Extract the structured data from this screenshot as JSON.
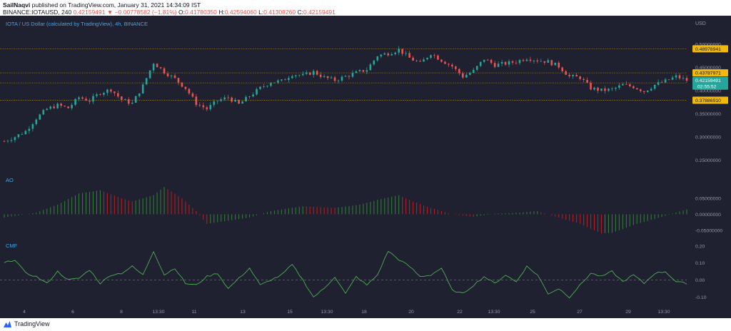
{
  "header": {
    "author": "SailNaqvi",
    "published": "published on TradingView.com, January 31, 2021 14:34:09 IST",
    "symbol_line": "BINANCE:IOTAUSD, 240",
    "arrow": "▼",
    "change": "−0.00778582 (−1.81%)",
    "ohlc": [
      {
        "k": "O:",
        "v": "0.41780350"
      },
      {
        "k": "H:",
        "v": "0.42594060"
      },
      {
        "k": "L:",
        "v": "0.41308260"
      },
      {
        "k": "C:",
        "v": "0.42159491"
      }
    ],
    "last": "0.42159491"
  },
  "chart_title": "IOTA / US Dollar (calculated by TradingView), 4h, BINANCE",
  "footer": {
    "brand": "TradingView"
  },
  "colors": {
    "background": "#1f2130",
    "up": "#26a69a",
    "down": "#ef5350",
    "ao_up": "#2e7d32",
    "ao_down": "#b71c1c",
    "cmf_line": "#4caf50",
    "level_line": "#f0b90b",
    "price_label": "#26a69a",
    "axis_text": "#9598a1"
  },
  "chart_data": [
    {
      "type": "candlestick",
      "title": "IOTA / US Dollar (calculated by TradingView), 4h, BINANCE",
      "y_axis_label": "USD",
      "y_ticks": [
        "0.50000000",
        "0.45000000",
        "0.40000000",
        "0.35000000",
        "0.30000000",
        "0.25000000"
      ],
      "ylim": [
        0.235,
        0.515
      ],
      "x_ticks": [
        "4",
        "6",
        "8",
        "13:30",
        "11",
        "13",
        "15",
        "13:30",
        "18",
        "20",
        "22",
        "13:30",
        "25",
        "27",
        "29",
        "13:30"
      ],
      "grid": false,
      "levels": [
        {
          "value": "0.48978941",
          "y": 0.48978941
        },
        {
          "value": "0.43787971",
          "y": 0.43787971
        },
        {
          "value": "0.41632980",
          "y": 0.4163298
        },
        {
          "value": "0.37886910",
          "y": 0.3788691
        }
      ],
      "last_price_label": {
        "value": "0.42159491",
        "countdown": "02:55:52"
      },
      "close_anchors": [
        [
          0,
          0.29
        ],
        [
          6,
          0.3
        ],
        [
          12,
          0.312
        ],
        [
          18,
          0.34
        ],
        [
          24,
          0.36
        ],
        [
          30,
          0.368
        ],
        [
          36,
          0.362
        ],
        [
          42,
          0.385
        ],
        [
          48,
          0.378
        ],
        [
          54,
          0.395
        ],
        [
          60,
          0.402
        ],
        [
          66,
          0.38
        ],
        [
          72,
          0.372
        ],
        [
          78,
          0.41
        ],
        [
          84,
          0.46
        ],
        [
          90,
          0.44
        ],
        [
          96,
          0.425
        ],
        [
          102,
          0.405
        ],
        [
          108,
          0.372
        ],
        [
          114,
          0.36
        ],
        [
          120,
          0.378
        ],
        [
          126,
          0.385
        ],
        [
          132,
          0.37
        ],
        [
          138,
          0.388
        ],
        [
          144,
          0.405
        ],
        [
          150,
          0.418
        ],
        [
          156,
          0.42
        ],
        [
          162,
          0.435
        ],
        [
          168,
          0.432
        ],
        [
          174,
          0.44
        ],
        [
          180,
          0.428
        ],
        [
          186,
          0.422
        ],
        [
          192,
          0.43
        ],
        [
          198,
          0.438
        ],
        [
          204,
          0.445
        ],
        [
          210,
          0.475
        ],
        [
          216,
          0.48
        ],
        [
          222,
          0.488
        ],
        [
          228,
          0.47
        ],
        [
          234,
          0.458
        ],
        [
          240,
          0.48
        ],
        [
          246,
          0.465
        ],
        [
          252,
          0.452
        ],
        [
          258,
          0.43
        ],
        [
          264,
          0.442
        ],
        [
          270,
          0.468
        ],
        [
          276,
          0.455
        ],
        [
          282,
          0.458
        ],
        [
          288,
          0.462
        ],
        [
          294,
          0.47
        ],
        [
          300,
          0.465
        ],
        [
          306,
          0.462
        ],
        [
          312,
          0.452
        ],
        [
          318,
          0.43
        ],
        [
          324,
          0.428
        ],
        [
          330,
          0.405
        ],
        [
          336,
          0.4
        ],
        [
          342,
          0.402
        ],
        [
          348,
          0.412
        ],
        [
          354,
          0.408
        ],
        [
          360,
          0.398
        ],
        [
          366,
          0.412
        ],
        [
          372,
          0.42
        ],
        [
          378,
          0.43
        ],
        [
          384,
          0.422
        ]
      ],
      "volatility": 0.0045
    },
    {
      "type": "bar",
      "title": "AO",
      "y_ticks": [
        "0.05000000",
        "0.00000000",
        "-0.05000000"
      ],
      "ylim": [
        -0.075,
        0.09
      ],
      "anchors": [
        [
          0,
          -0.01
        ],
        [
          18,
          0.005
        ],
        [
          30,
          0.03
        ],
        [
          42,
          0.065
        ],
        [
          54,
          0.075
        ],
        [
          66,
          0.05
        ],
        [
          72,
          0.04
        ],
        [
          84,
          0.06
        ],
        [
          90,
          0.085
        ],
        [
          100,
          0.05
        ],
        [
          108,
          0.01
        ],
        [
          114,
          -0.03
        ],
        [
          126,
          -0.02
        ],
        [
          138,
          -0.01
        ],
        [
          150,
          0.01
        ],
        [
          168,
          0.025
        ],
        [
          186,
          0.02
        ],
        [
          200,
          0.03
        ],
        [
          210,
          0.045
        ],
        [
          222,
          0.06
        ],
        [
          230,
          0.04
        ],
        [
          240,
          0.02
        ],
        [
          252,
          0.0
        ],
        [
          264,
          -0.008
        ],
        [
          276,
          0.002
        ],
        [
          290,
          0.005
        ],
        [
          300,
          0.01
        ],
        [
          312,
          -0.01
        ],
        [
          324,
          -0.03
        ],
        [
          336,
          -0.06
        ],
        [
          342,
          -0.058
        ],
        [
          356,
          -0.03
        ],
        [
          370,
          -0.008
        ],
        [
          384,
          0.015
        ]
      ]
    },
    {
      "type": "line",
      "title": "CMF",
      "y_ticks": [
        "0.20",
        "0.10",
        "0.00",
        "-0.10"
      ],
      "ylim": [
        -0.14,
        0.22
      ],
      "anchors": [
        [
          0,
          0.1
        ],
        [
          6,
          0.12
        ],
        [
          12,
          0.04
        ],
        [
          18,
          0.02
        ],
        [
          24,
          -0.02
        ],
        [
          30,
          0.05
        ],
        [
          36,
          0.0
        ],
        [
          42,
          0.01
        ],
        [
          48,
          0.06
        ],
        [
          54,
          -0.02
        ],
        [
          60,
          0.03
        ],
        [
          66,
          0.04
        ],
        [
          72,
          0.08
        ],
        [
          78,
          0.03
        ],
        [
          84,
          0.17
        ],
        [
          90,
          0.03
        ],
        [
          96,
          0.07
        ],
        [
          102,
          -0.02
        ],
        [
          108,
          -0.03
        ],
        [
          114,
          0.02
        ],
        [
          120,
          0.04
        ],
        [
          126,
          -0.05
        ],
        [
          132,
          0.01
        ],
        [
          138,
          0.07
        ],
        [
          144,
          -0.03
        ],
        [
          150,
          0.0
        ],
        [
          156,
          0.03
        ],
        [
          162,
          0.09
        ],
        [
          168,
          0.0
        ],
        [
          174,
          -0.1
        ],
        [
          180,
          -0.05
        ],
        [
          186,
          0.02
        ],
        [
          192,
          -0.08
        ],
        [
          198,
          0.02
        ],
        [
          204,
          -0.03
        ],
        [
          210,
          0.03
        ],
        [
          216,
          0.17
        ],
        [
          222,
          0.12
        ],
        [
          228,
          0.08
        ],
        [
          234,
          0.02
        ],
        [
          240,
          0.03
        ],
        [
          246,
          0.07
        ],
        [
          252,
          -0.06
        ],
        [
          258,
          -0.08
        ],
        [
          264,
          -0.03
        ],
        [
          270,
          0.02
        ],
        [
          276,
          -0.02
        ],
        [
          282,
          0.03
        ],
        [
          288,
          -0.01
        ],
        [
          294,
          0.08
        ],
        [
          300,
          0.03
        ],
        [
          306,
          -0.08
        ],
        [
          312,
          -0.05
        ],
        [
          318,
          -0.1
        ],
        [
          324,
          -0.03
        ],
        [
          330,
          0.04
        ],
        [
          336,
          0.02
        ],
        [
          342,
          0.05
        ],
        [
          348,
          -0.01
        ],
        [
          354,
          0.03
        ],
        [
          360,
          -0.02
        ],
        [
          366,
          0.04
        ],
        [
          372,
          0.05
        ],
        [
          378,
          -0.01
        ],
        [
          384,
          -0.02
        ]
      ]
    }
  ]
}
